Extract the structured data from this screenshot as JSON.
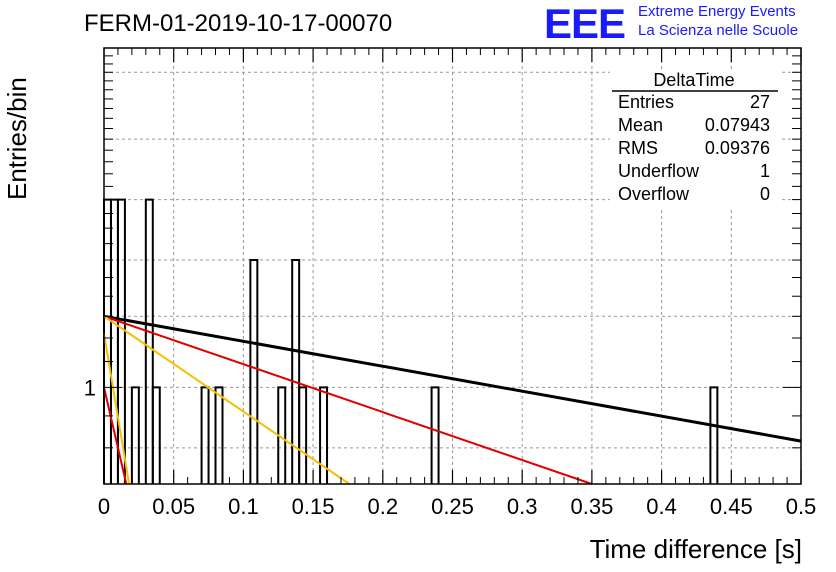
{
  "header": {
    "title": "FERM-01-2019-10-17-00070",
    "logo_text": "EEE",
    "logo_line1": "Extreme Energy Events",
    "logo_line2": "La Scienza nelle Scuole"
  },
  "stats": {
    "title": "DeltaTime",
    "rows": [
      {
        "key": "Entries",
        "value": "27"
      },
      {
        "key": "Mean",
        "value": "0.07943"
      },
      {
        "key": "RMS",
        "value": "0.09376"
      },
      {
        "key": "Underflow",
        "value": "1"
      },
      {
        "key": "Overflow",
        "value": "0"
      }
    ]
  },
  "chart_data": {
    "type": "histogram",
    "title": "FERM-01-2019-10-17-00070",
    "xlabel": "Time difference [s]",
    "ylabel": "Entries/bin",
    "xlim": [
      0,
      0.5
    ],
    "ylim": [
      0.7,
      3.5
    ],
    "yscale": "log",
    "grid": true,
    "bin_width": 0.005,
    "x_ticks": [
      "0",
      "0.05",
      "0.1",
      "0.15",
      "0.2",
      "0.25",
      "0.3",
      "0.35",
      "0.4",
      "0.45",
      "0.5"
    ],
    "y_tick_labels": [
      {
        "value": 1,
        "label": "1"
      }
    ],
    "bins": [
      {
        "x": 0.0,
        "y": 2
      },
      {
        "x": 0.005,
        "y": 2
      },
      {
        "x": 0.01,
        "y": 2
      },
      {
        "x": 0.02,
        "y": 1
      },
      {
        "x": 0.03,
        "y": 2
      },
      {
        "x": 0.035,
        "y": 1
      },
      {
        "x": 0.07,
        "y": 1
      },
      {
        "x": 0.08,
        "y": 1
      },
      {
        "x": 0.105,
        "y": 1.6
      },
      {
        "x": 0.125,
        "y": 1
      },
      {
        "x": 0.135,
        "y": 1.6
      },
      {
        "x": 0.14,
        "y": 1
      },
      {
        "x": 0.155,
        "y": 1
      },
      {
        "x": 0.235,
        "y": 1
      },
      {
        "x": 0.435,
        "y": 1
      }
    ],
    "fits": [
      {
        "color": "#000000",
        "width": 3,
        "x": [
          0,
          0.5
        ],
        "y": [
          1.3,
          0.82
        ]
      },
      {
        "color": "#e00000",
        "width": 2,
        "x": [
          0,
          0.35
        ],
        "y": [
          1.3,
          0.7
        ]
      },
      {
        "color": "#f5c000",
        "width": 2,
        "x": [
          0,
          0.176
        ],
        "y": [
          1.3,
          0.7
        ]
      },
      {
        "color": "#f5c000",
        "width": 2,
        "x": [
          0,
          0.018
        ],
        "y": [
          1.22,
          0.7
        ]
      },
      {
        "color": "#e00000",
        "width": 2,
        "x": [
          0,
          0.016
        ],
        "y": [
          1.0,
          0.7
        ]
      }
    ]
  }
}
